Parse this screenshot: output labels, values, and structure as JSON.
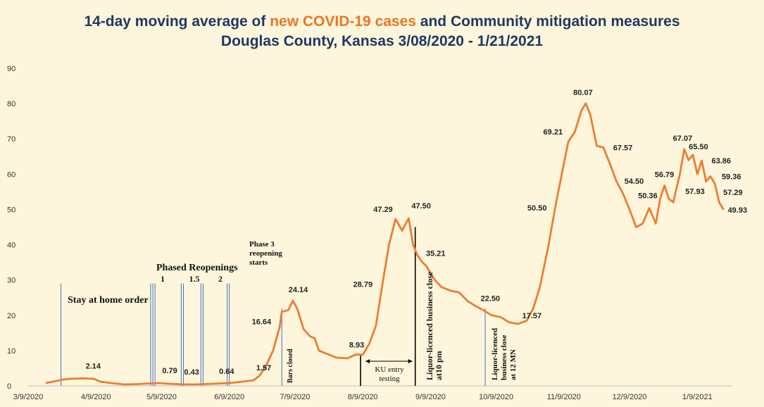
{
  "title": {
    "line1_prefix": "14-day moving average of ",
    "line1_highlight": "new COVID-19 cases",
    "line1_suffix": " and Community mitigation measures",
    "line2": "Douglas County, Kansas 3/08/2020 - 1/21/2021"
  },
  "colors": {
    "background": "#fdf6dc",
    "title": "#1f3864",
    "highlight": "#e87722",
    "series": "#ed7d31",
    "event_line": "#4472c4"
  },
  "chart_data": {
    "type": "line",
    "title": "14-day moving average of new COVID-19 cases and Community mitigation measures Douglas County, Kansas 3/08/2020 - 1/21/2021",
    "xlabel": "",
    "ylabel": "",
    "ylim": [
      0,
      90
    ],
    "yticks": [
      0,
      10,
      20,
      30,
      40,
      50,
      60,
      70,
      80,
      90
    ],
    "xlim": [
      "2020-03-09",
      "2021-01-25"
    ],
    "xticks": [
      "3/9/2020",
      "4/9/2020",
      "5/9/2020",
      "6/9/2020",
      "7/9/2020",
      "8/9/2020",
      "9/9/2020",
      "10/9/2020",
      "11/9/2020",
      "12/9/2020",
      "1/9/2021"
    ],
    "grid": false,
    "series": [
      {
        "x": [
          "2020-03-17",
          "2020-03-22",
          "2020-03-25",
          "2020-03-28",
          "2020-04-03",
          "2020-04-08",
          "2020-04-11",
          "2020-04-16",
          "2020-04-22",
          "2020-04-28",
          "2020-05-04",
          "2020-05-08",
          "2020-05-12",
          "2020-05-18",
          "2020-05-24",
          "2020-05-28",
          "2020-06-03",
          "2020-06-09",
          "2020-06-15",
          "2020-06-20",
          "2020-06-23",
          "2020-06-26",
          "2020-06-29",
          "2020-07-02",
          "2020-07-03",
          "2020-07-06",
          "2020-07-08",
          "2020-07-10",
          "2020-07-13",
          "2020-07-16",
          "2020-07-18",
          "2020-07-20",
          "2020-07-24",
          "2020-07-28",
          "2020-08-02",
          "2020-08-06",
          "2020-08-09",
          "2020-08-12",
          "2020-08-15",
          "2020-08-18",
          "2020-08-21",
          "2020-08-24",
          "2020-08-27",
          "2020-08-30",
          "2020-09-01",
          "2020-09-03",
          "2020-09-05",
          "2020-09-07",
          "2020-09-11",
          "2020-09-14",
          "2020-09-18",
          "2020-09-22",
          "2020-09-26",
          "2020-09-30",
          "2020-10-03",
          "2020-10-07",
          "2020-10-11",
          "2020-10-15",
          "2020-10-19",
          "2020-10-23",
          "2020-10-26",
          "2020-10-29",
          "2020-11-02",
          "2020-11-05",
          "2020-11-08",
          "2020-11-11",
          "2020-11-14",
          "2020-11-17",
          "2020-11-19",
          "2020-11-21",
          "2020-11-24",
          "2020-11-27",
          "2020-11-30",
          "2020-12-03",
          "2020-12-06",
          "2020-12-09",
          "2020-12-12",
          "2020-12-15",
          "2020-12-18",
          "2020-12-21",
          "2020-12-23",
          "2020-12-25",
          "2020-12-27",
          "2020-12-29",
          "2021-01-01",
          "2021-01-03",
          "2021-01-05",
          "2021-01-07",
          "2021-01-09",
          "2021-01-11",
          "2021-01-13",
          "2021-01-15",
          "2021-01-17",
          "2021-01-19",
          "2021-01-21"
        ],
        "y": [
          0.8,
          1.4,
          1.8,
          2.0,
          2.14,
          2.0,
          1.2,
          0.8,
          0.4,
          0.5,
          0.7,
          0.79,
          0.6,
          0.43,
          0.4,
          0.5,
          0.64,
          0.8,
          1.2,
          1.57,
          3.0,
          6.0,
          10.0,
          16.64,
          21.0,
          21.5,
          24.14,
          22.0,
          16.0,
          14.0,
          13.5,
          10.0,
          9.0,
          8.0,
          7.8,
          8.93,
          8.8,
          12.0,
          17.0,
          28.79,
          40.0,
          47.29,
          44.0,
          47.5,
          40.0,
          37.0,
          35.21,
          34.0,
          30.0,
          28.0,
          27.0,
          26.5,
          24.0,
          22.5,
          21.5,
          20.0,
          19.5,
          18.0,
          17.57,
          18.5,
          22.0,
          28.0,
          40.0,
          50.5,
          60.0,
          69.21,
          72.0,
          78.0,
          80.07,
          77.0,
          68.0,
          67.57,
          63.0,
          58.0,
          54.5,
          50.0,
          45.0,
          46.0,
          50.36,
          46.0,
          53.0,
          56.79,
          53.0,
          52.0,
          60.0,
          67.07,
          64.0,
          65.5,
          60.0,
          63.86,
          57.93,
          59.36,
          57.29,
          52.0,
          49.93
        ]
      }
    ],
    "data_labels": [
      {
        "x": "2020-04-03",
        "y": 2.14,
        "text": "2.14"
      },
      {
        "x": "2020-05-08",
        "y": 0.79,
        "text": "0.79"
      },
      {
        "x": "2020-05-18",
        "y": 0.43,
        "text": "0.43"
      },
      {
        "x": "2020-06-03",
        "y": 0.64,
        "text": "0.64"
      },
      {
        "x": "2020-06-20",
        "y": 1.57,
        "text": "1.57"
      },
      {
        "x": "2020-07-02",
        "y": 16.64,
        "text": "16.64"
      },
      {
        "x": "2020-07-08",
        "y": 24.14,
        "text": "24.14"
      },
      {
        "x": "2020-08-06",
        "y": 8.93,
        "text": "8.93"
      },
      {
        "x": "2020-08-18",
        "y": 28.79,
        "text": "28.79"
      },
      {
        "x": "2020-08-24",
        "y": 47.29,
        "text": "47.29"
      },
      {
        "x": "2020-08-30",
        "y": 47.5,
        "text": "47.50"
      },
      {
        "x": "2020-09-05",
        "y": 35.21,
        "text": "35.21"
      },
      {
        "x": "2020-09-30",
        "y": 22.5,
        "text": "22.50"
      },
      {
        "x": "2020-10-19",
        "y": 17.57,
        "text": "17.57"
      },
      {
        "x": "2020-11-05",
        "y": 50.5,
        "text": "50.50"
      },
      {
        "x": "2020-11-11",
        "y": 69.21,
        "text": "69.21"
      },
      {
        "x": "2020-11-19",
        "y": 80.07,
        "text": "80.07"
      },
      {
        "x": "2020-11-27",
        "y": 67.57,
        "text": "67.57"
      },
      {
        "x": "2020-12-06",
        "y": 54.5,
        "text": "54.50"
      },
      {
        "x": "2020-12-18",
        "y": 50.36,
        "text": "50.36"
      },
      {
        "x": "2020-12-25",
        "y": 56.79,
        "text": "56.79"
      },
      {
        "x": "2021-01-03",
        "y": 67.07,
        "text": "67.07"
      },
      {
        "x": "2021-01-07",
        "y": 65.5,
        "text": "65.50"
      },
      {
        "x": "2021-01-11",
        "y": 63.86,
        "text": "63.86"
      },
      {
        "x": "2021-01-13",
        "y": 57.93,
        "text": "57.93"
      },
      {
        "x": "2021-01-15",
        "y": 59.36,
        "text": "59.36"
      },
      {
        "x": "2021-01-17",
        "y": 57.29,
        "text": "57.29"
      },
      {
        "x": "2021-01-21",
        "y": 49.93,
        "text": "49.93"
      }
    ],
    "events": [
      {
        "x": "2020-03-24",
        "y_top": 29,
        "label": "Stay at home order"
      },
      {
        "x": "2020-05-04",
        "y_top": 29
      },
      {
        "x": "2020-05-05",
        "y_top": 29
      },
      {
        "x": "2020-05-06",
        "y_top": 29
      },
      {
        "x": "2020-05-18",
        "y_top": 29
      },
      {
        "x": "2020-05-19",
        "y_top": 29
      },
      {
        "x": "2020-05-27",
        "y_top": 29
      },
      {
        "x": "2020-05-28",
        "y_top": 29
      },
      {
        "x": "2020-06-08",
        "y_top": 29
      },
      {
        "x": "2020-06-09",
        "y_top": 29
      },
      {
        "x": "2020-07-03",
        "y_top": 22
      },
      {
        "x": "2020-08-08",
        "y_top": 9,
        "color": "#000000"
      },
      {
        "x": "2020-09-02",
        "y_top": 45,
        "color": "#000000"
      },
      {
        "x": "2020-10-04",
        "y_top": 22
      }
    ],
    "annotations": {
      "phased_reopenings": "Phased Reopenings",
      "phase_numbers": [
        "1",
        "1.5",
        "2"
      ],
      "phase3": [
        "Phase 3",
        "reopening",
        "starts"
      ],
      "bars_closed": "Bars closed",
      "ku_entry": [
        "KU entry",
        "testing"
      ],
      "liquor_10pm": [
        "Liquor-licenced  business close",
        "at10 pm"
      ],
      "liquor_12mn": [
        "Liquor-licenced",
        "business close",
        "at 12 MN"
      ],
      "stay_home": "Stay at home order"
    }
  }
}
